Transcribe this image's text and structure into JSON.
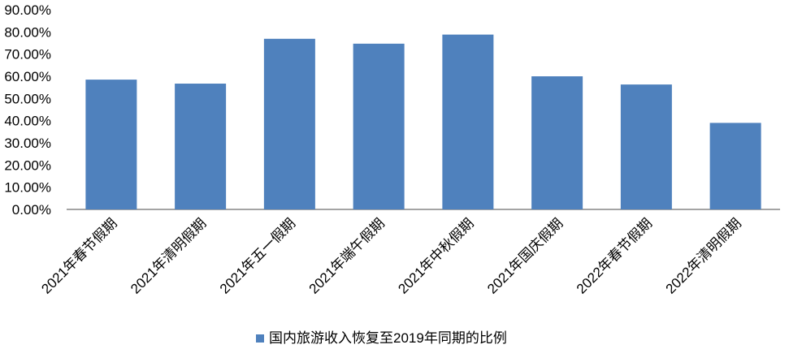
{
  "chart_data": {
    "type": "bar",
    "categories": [
      "2021年春节假期",
      "2021年清明假期",
      "2021年五一假期",
      "2021年端午假期",
      "2021年中秋假期",
      "2021年国庆假期",
      "2022年春节假期",
      "2022年清明假期"
    ],
    "series": [
      {
        "name": "国内旅游收入恢复至2019年同期的比例",
        "values": [
          58.5,
          56.7,
          76.9,
          74.7,
          78.8,
          60.0,
          56.3,
          39.0
        ],
        "color": "#4F81BD"
      }
    ],
    "yticks": [
      "0.00%",
      "10.00%",
      "20.00%",
      "30.00%",
      "40.00%",
      "50.00%",
      "60.00%",
      "70.00%",
      "80.00%",
      "90.00%"
    ],
    "ylim": [
      0,
      90
    ],
    "grid": false,
    "legend": "bottom"
  }
}
